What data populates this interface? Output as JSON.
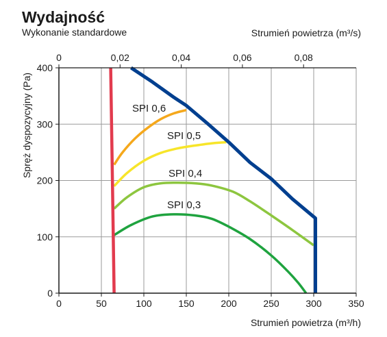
{
  "chart_data": {
    "type": "line",
    "title": "Wydajność",
    "subtitle": "Wykonanie standardowe",
    "xlabel": "Strumień powietrza (m³/h)",
    "x2label": "Strumień powietrza (m³/s)",
    "ylabel": "Spręż dyspozycyjny (Pa)",
    "xlim": [
      0,
      350
    ],
    "ylim": [
      0,
      400
    ],
    "x2lim": [
      0,
      0.0972
    ],
    "grid": true,
    "x_ticks": [
      0,
      50,
      100,
      150,
      200,
      250,
      300,
      350
    ],
    "y_ticks": [
      0,
      100,
      200,
      300,
      400
    ],
    "x2_ticks": [
      0,
      0.02,
      0.04,
      0.06,
      0.08
    ],
    "x2_tick_labels": [
      "0",
      "0,02",
      "0,04",
      "0,06",
      "0,08"
    ],
    "series": [
      {
        "name": "SPI 0,6",
        "color": "#f5a81c",
        "points": [
          [
            65,
            228
          ],
          [
            75,
            250
          ],
          [
            90,
            275
          ],
          [
            105,
            294
          ],
          [
            120,
            309
          ],
          [
            135,
            319
          ],
          [
            150,
            325
          ]
        ]
      },
      {
        "name": "SPI 0,5",
        "color": "#f7e52a",
        "points": [
          [
            65,
            190
          ],
          [
            80,
            213
          ],
          [
            100,
            235
          ],
          [
            120,
            249
          ],
          [
            140,
            257
          ],
          [
            160,
            262
          ],
          [
            180,
            266
          ],
          [
            197,
            268
          ]
        ]
      },
      {
        "name": "SPI 0,4",
        "color": "#8dc63f",
        "points": [
          [
            65,
            150
          ],
          [
            80,
            170
          ],
          [
            100,
            188
          ],
          [
            120,
            195
          ],
          [
            140,
            196
          ],
          [
            160,
            195
          ],
          [
            180,
            191
          ],
          [
            205,
            180
          ],
          [
            225,
            163
          ],
          [
            250,
            138
          ],
          [
            275,
            112
          ],
          [
            300,
            85
          ]
        ]
      },
      {
        "name": "SPI 0,3",
        "color": "#1fa33f",
        "points": [
          [
            65,
            103
          ],
          [
            85,
            121
          ],
          [
            110,
            136
          ],
          [
            135,
            140
          ],
          [
            160,
            138
          ],
          [
            180,
            132
          ],
          [
            200,
            118
          ],
          [
            225,
            96
          ],
          [
            250,
            67
          ],
          [
            270,
            38
          ],
          [
            282,
            18
          ],
          [
            291,
            0
          ]
        ]
      },
      {
        "color": "#003f8f",
        "points": [
          [
            85,
            400
          ],
          [
            110,
            375
          ],
          [
            135,
            348
          ],
          [
            150,
            333
          ],
          [
            175,
            301
          ],
          [
            200,
            268
          ],
          [
            225,
            232
          ],
          [
            250,
            203
          ],
          [
            275,
            167
          ],
          [
            302,
            133
          ],
          [
            302,
            0
          ]
        ]
      },
      {
        "color": "#e23b4e",
        "points": [
          [
            61,
            400
          ],
          [
            65,
            0
          ]
        ]
      }
    ]
  }
}
